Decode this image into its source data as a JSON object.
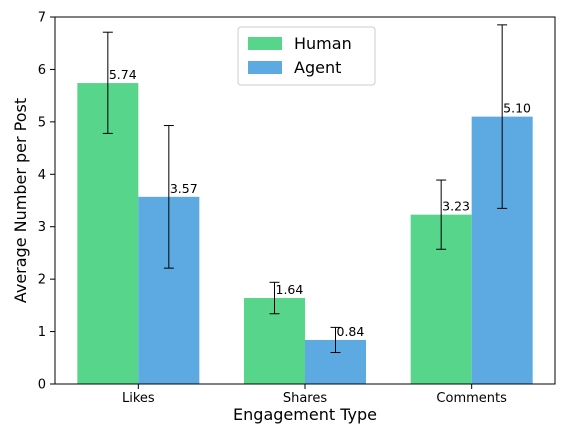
{
  "chart_data": {
    "type": "bar",
    "xlabel": "Engagement Type",
    "ylabel": "Average Number per Post",
    "ylim": [
      0,
      7
    ],
    "yticks": [
      "0",
      "1",
      "2",
      "3",
      "4",
      "5",
      "6",
      "7"
    ],
    "categories": [
      "Likes",
      "Shares",
      "Comments"
    ],
    "series": [
      {
        "name": "Human",
        "color": "#57d68b",
        "values": [
          5.74,
          1.64,
          3.23
        ],
        "labels": [
          "5.74",
          "1.64",
          "3.23"
        ],
        "error_low": [
          4.78,
          1.34,
          2.57
        ],
        "error_high": [
          6.71,
          1.94,
          3.89
        ]
      },
      {
        "name": "Agent",
        "color": "#5daae2",
        "values": [
          3.57,
          0.84,
          5.1
        ],
        "labels": [
          "3.57",
          "0.84",
          "5.10"
        ],
        "error_low": [
          2.21,
          0.6,
          3.35
        ],
        "error_high": [
          4.93,
          1.08,
          6.85
        ]
      }
    ],
    "grid": false,
    "legend_position": "top-center"
  }
}
